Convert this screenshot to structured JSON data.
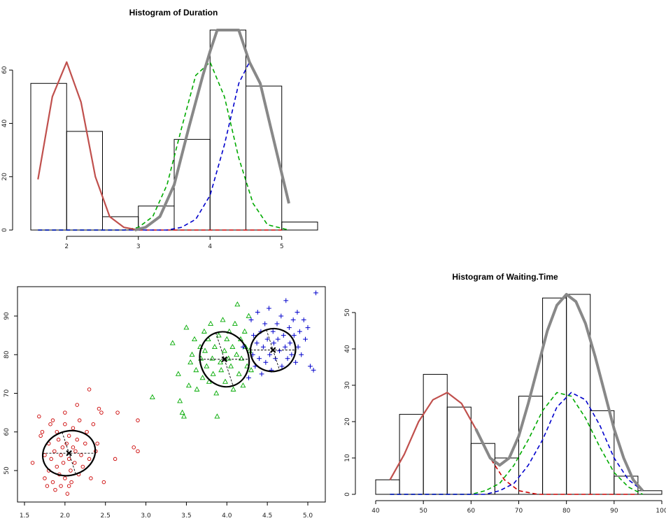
{
  "chart_data": [
    {
      "type": "bar",
      "subtype": "histogram",
      "title": "Histogram of Duration",
      "xlabel": "",
      "ylabel": "",
      "xlim": [
        1.5,
        5.5
      ],
      "ylim": [
        0,
        75
      ],
      "x_ticks": [
        "2",
        "3",
        "4",
        "5"
      ],
      "y_ticks": [
        "0",
        "20",
        "40",
        "60"
      ],
      "bins": [
        {
          "start": 1.5,
          "end": 2.0,
          "count": 55
        },
        {
          "start": 2.0,
          "end": 2.5,
          "count": 37
        },
        {
          "start": 2.5,
          "end": 3.0,
          "count": 5
        },
        {
          "start": 3.0,
          "end": 3.5,
          "count": 9
        },
        {
          "start": 3.5,
          "end": 4.0,
          "count": 34
        },
        {
          "start": 4.0,
          "end": 4.5,
          "count": 75
        },
        {
          "start": 4.5,
          "end": 5.0,
          "count": 54
        },
        {
          "start": 5.0,
          "end": 5.5,
          "count": 3
        }
      ],
      "series": [
        {
          "color": "#cc0000",
          "style": "dashed",
          "x": [
            1.6,
            1.8,
            2.0,
            2.2,
            2.4,
            2.6,
            2.8,
            3.0,
            3.4,
            3.8,
            4.2,
            4.6,
            5.0
          ],
          "y": [
            19,
            50,
            63,
            48,
            20,
            5,
            1,
            0,
            0,
            0,
            0,
            0,
            0
          ]
        },
        {
          "color": "#00aa00",
          "style": "dashed",
          "x": [
            1.6,
            2.8,
            3.0,
            3.2,
            3.4,
            3.6,
            3.8,
            4.0,
            4.2,
            4.4,
            4.6,
            4.8,
            5.1
          ],
          "y": [
            0,
            0,
            1,
            5,
            17,
            38,
            58,
            63,
            50,
            27,
            10,
            2,
            0
          ]
        },
        {
          "color": "#0000cc",
          "style": "dashed",
          "x": [
            1.6,
            3.4,
            3.6,
            3.8,
            4.0,
            4.2,
            4.4,
            4.55,
            4.7,
            4.85,
            5.1
          ],
          "y": [
            0,
            0,
            1,
            4,
            13,
            32,
            55,
            63,
            55,
            38,
            10
          ]
        },
        {
          "color": "#c0504d",
          "style": "solid",
          "x": [
            1.6,
            1.8,
            2.0,
            2.2,
            2.4,
            2.6,
            2.8,
            3.0
          ],
          "y": [
            19,
            50,
            63,
            48,
            20,
            5,
            1,
            0
          ]
        },
        {
          "color": "#888888",
          "style": "solid",
          "x": [
            2.95,
            3.1,
            3.3,
            3.5,
            3.7,
            3.9,
            4.0,
            4.1,
            4.4,
            4.55,
            4.7,
            4.85,
            5.1
          ],
          "y": [
            0,
            1,
            5,
            17,
            38,
            58,
            67,
            75,
            75,
            63,
            55,
            38,
            10
          ]
        }
      ]
    },
    {
      "type": "scatter",
      "title": "",
      "xlabel": "",
      "ylabel": "",
      "xlim": [
        1.5,
        5.2
      ],
      "ylim": [
        42,
        97
      ],
      "x_ticks": [
        "1.5",
        "2.0",
        "2.5",
        "3.0",
        "3.5",
        "4.0",
        "4.5",
        "5.0"
      ],
      "y_ticks": [
        "50",
        "60",
        "70",
        "80",
        "90"
      ],
      "clusters": [
        {
          "marker": "circle",
          "color": "#cc0000",
          "center": [
            2.05,
            54.5
          ],
          "ellipse": {
            "rx": 0.33,
            "ry": 5.7,
            "angle": 0
          },
          "points": [
            [
              1.6,
              52
            ],
            [
              1.68,
              64
            ],
            [
              1.72,
              60
            ],
            [
              1.75,
              54
            ],
            [
              1.75,
              48
            ],
            [
              1.78,
              46
            ],
            [
              1.8,
              57
            ],
            [
              1.8,
              50
            ],
            [
              1.82,
              62
            ],
            [
              1.83,
              53
            ],
            [
              1.85,
              47
            ],
            [
              1.87,
              55
            ],
            [
              1.88,
              45
            ],
            [
              1.9,
              60
            ],
            [
              1.9,
              51
            ],
            [
              1.92,
              58
            ],
            [
              1.93,
              49
            ],
            [
              1.95,
              54
            ],
            [
              1.95,
              46
            ],
            [
              1.97,
              56
            ],
            [
              1.98,
              52
            ],
            [
              2.0,
              62
            ],
            [
              2.0,
              48
            ],
            [
              2.02,
              57
            ],
            [
              2.03,
              44
            ],
            [
              2.05,
              53
            ],
            [
              2.05,
              59
            ],
            [
              2.07,
              50
            ],
            [
              2.08,
              47
            ],
            [
              2.1,
              56
            ],
            [
              2.1,
              61
            ],
            [
              2.12,
              52
            ],
            [
              2.13,
              55
            ],
            [
              2.15,
              58
            ],
            [
              2.17,
              49
            ],
            [
              2.18,
              63
            ],
            [
              2.2,
              54
            ],
            [
              2.22,
              51
            ],
            [
              2.25,
              57
            ],
            [
              2.27,
              60
            ],
            [
              2.3,
              53
            ],
            [
              2.32,
              48
            ],
            [
              2.35,
              62
            ],
            [
              2.38,
              55
            ],
            [
              2.4,
              57
            ],
            [
              2.42,
              66
            ],
            [
              2.45,
              65
            ],
            [
              2.48,
              47
            ],
            [
              2.3,
              71
            ],
            [
              2.62,
              53
            ],
            [
              2.65,
              65
            ],
            [
              2.85,
              56
            ],
            [
              2.9,
              55
            ],
            [
              2.9,
              63
            ],
            [
              2.15,
              67
            ],
            [
              1.7,
              59
            ],
            [
              1.85,
              63
            ],
            [
              2.0,
              65
            ],
            [
              2.05,
              46
            ]
          ]
        },
        {
          "marker": "triangle",
          "color": "#00aa00",
          "center": [
            3.97,
            78.8
          ],
          "ellipse": {
            "rx": 0.3,
            "ry": 7.2,
            "angle": 0
          },
          "points": [
            [
              3.08,
              69
            ],
            [
              3.33,
              83
            ],
            [
              3.4,
              75
            ],
            [
              3.42,
              68
            ],
            [
              3.45,
              65
            ],
            [
              3.47,
              64
            ],
            [
              3.5,
              87
            ],
            [
              3.53,
              72
            ],
            [
              3.55,
              78
            ],
            [
              3.57,
              80
            ],
            [
              3.6,
              84
            ],
            [
              3.62,
              76
            ],
            [
              3.63,
              71
            ],
            [
              3.67,
              82
            ],
            [
              3.68,
              79
            ],
            [
              3.7,
              74
            ],
            [
              3.72,
              86
            ],
            [
              3.73,
              81
            ],
            [
              3.75,
              77
            ],
            [
              3.77,
              84
            ],
            [
              3.78,
              73
            ],
            [
              3.8,
              88
            ],
            [
              3.82,
              79
            ],
            [
              3.83,
              75
            ],
            [
              3.85,
              82
            ],
            [
              3.87,
              70
            ],
            [
              3.88,
              64
            ],
            [
              3.9,
              85
            ],
            [
              3.92,
              78
            ],
            [
              3.93,
              76
            ],
            [
              3.95,
              89
            ],
            [
              3.97,
              81
            ],
            [
              3.98,
              73
            ],
            [
              4.0,
              84
            ],
            [
              4.02,
              79
            ],
            [
              4.03,
              86
            ],
            [
              4.05,
              77
            ],
            [
              4.07,
              82
            ],
            [
              4.08,
              71
            ],
            [
              4.1,
              88
            ],
            [
              4.12,
              80
            ],
            [
              4.13,
              93
            ],
            [
              4.15,
              75
            ],
            [
              4.17,
              84
            ],
            [
              4.18,
              79
            ],
            [
              4.2,
              72
            ],
            [
              4.22,
              86
            ],
            [
              4.23,
              82
            ],
            [
              4.25,
              77
            ],
            [
              4.27,
              90
            ],
            [
              4.28,
              81
            ],
            [
              4.3,
              76
            ]
          ]
        },
        {
          "marker": "plus",
          "color": "#0000cc",
          "center": [
            4.57,
            81.2
          ],
          "ellipse": {
            "rx": 0.28,
            "ry": 5.5,
            "angle": 0
          },
          "points": [
            [
              4.2,
              82
            ],
            [
              4.27,
              74
            ],
            [
              4.3,
              89
            ],
            [
              4.32,
              80
            ],
            [
              4.33,
              85
            ],
            [
              4.35,
              77
            ],
            [
              4.37,
              83
            ],
            [
              4.38,
              91
            ],
            [
              4.4,
              79
            ],
            [
              4.42,
              86
            ],
            [
              4.43,
              75
            ],
            [
              4.45,
              82
            ],
            [
              4.47,
              88
            ],
            [
              4.48,
              78
            ],
            [
              4.5,
              84
            ],
            [
              4.52,
              92
            ],
            [
              4.53,
              80
            ],
            [
              4.55,
              76
            ],
            [
              4.57,
              86
            ],
            [
              4.58,
              83
            ],
            [
              4.6,
              79
            ],
            [
              4.62,
              88
            ],
            [
              4.63,
              84
            ],
            [
              4.65,
              81
            ],
            [
              4.67,
              90
            ],
            [
              4.68,
              77
            ],
            [
              4.7,
              85
            ],
            [
              4.72,
              82
            ],
            [
              4.73,
              94
            ],
            [
              4.75,
              79
            ],
            [
              4.77,
              87
            ],
            [
              4.78,
              83
            ],
            [
              4.8,
              80
            ],
            [
              4.82,
              89
            ],
            [
              4.83,
              85
            ],
            [
              4.85,
              78
            ],
            [
              4.87,
              91
            ],
            [
              4.88,
              82
            ],
            [
              4.9,
              86
            ],
            [
              4.92,
              80
            ],
            [
              4.95,
              89
            ],
            [
              4.97,
              84
            ],
            [
              5.0,
              87
            ],
            [
              5.03,
              77
            ],
            [
              5.07,
              76
            ],
            [
              5.1,
              96
            ]
          ]
        }
      ]
    },
    {
      "type": "bar",
      "subtype": "histogram",
      "title": "Histogram of Waiting.Time",
      "xlabel": "",
      "ylabel": "",
      "xlim": [
        40,
        100
      ],
      "ylim": [
        0,
        55
      ],
      "x_ticks": [
        "40",
        "50",
        "60",
        "70",
        "80",
        "90",
        "100"
      ],
      "y_ticks": [
        "0",
        "10",
        "20",
        "30",
        "40",
        "50"
      ],
      "bins": [
        {
          "start": 40,
          "end": 45,
          "count": 4
        },
        {
          "start": 45,
          "end": 50,
          "count": 22
        },
        {
          "start": 50,
          "end": 55,
          "count": 33
        },
        {
          "start": 55,
          "end": 60,
          "count": 24
        },
        {
          "start": 60,
          "end": 65,
          "count": 14
        },
        {
          "start": 65,
          "end": 70,
          "count": 10
        },
        {
          "start": 70,
          "end": 75,
          "count": 27
        },
        {
          "start": 75,
          "end": 80,
          "count": 54
        },
        {
          "start": 80,
          "end": 85,
          "count": 55
        },
        {
          "start": 85,
          "end": 90,
          "count": 23
        },
        {
          "start": 90,
          "end": 95,
          "count": 5
        },
        {
          "start": 95,
          "end": 100,
          "count": 1
        }
      ],
      "series": [
        {
          "color": "#cc0000",
          "style": "dashed",
          "x": [
            43,
            46,
            49,
            52,
            55,
            58,
            61,
            64,
            67,
            70,
            74,
            95
          ],
          "y": [
            4,
            11,
            20,
            26,
            28,
            25,
            18,
            10,
            4,
            1,
            0,
            0
          ]
        },
        {
          "color": "#00aa00",
          "style": "dashed",
          "x": [
            43,
            60,
            63,
            66,
            69,
            72,
            75,
            78,
            81,
            84,
            87,
            90,
            93,
            96
          ],
          "y": [
            0,
            0,
            1,
            3,
            8,
            15,
            23,
            28,
            27,
            21,
            13,
            6,
            2,
            0
          ]
        },
        {
          "color": "#0000cc",
          "style": "dashed",
          "x": [
            43,
            63,
            66,
            69,
            72,
            75,
            78,
            81,
            84,
            87,
            90,
            93,
            96
          ],
          "y": [
            0,
            0,
            1,
            3,
            8,
            15,
            24,
            28,
            26,
            19,
            10,
            4,
            1
          ]
        },
        {
          "color": "#c0504d",
          "style": "solid",
          "x": [
            43,
            46,
            49,
            52,
            55,
            58,
            61,
            64,
            66
          ],
          "y": [
            4,
            11,
            20,
            26,
            28,
            25,
            18,
            10,
            8
          ]
        },
        {
          "color": "#888888",
          "style": "solid",
          "x": [
            61,
            64,
            66,
            68,
            70,
            72,
            74,
            76,
            78,
            80,
            82,
            84,
            86,
            88,
            90,
            92,
            94,
            96
          ],
          "y": [
            18,
            10,
            8,
            10,
            16,
            25,
            35,
            45,
            52,
            55,
            53,
            47,
            38,
            28,
            18,
            10,
            4,
            1
          ]
        }
      ]
    }
  ]
}
